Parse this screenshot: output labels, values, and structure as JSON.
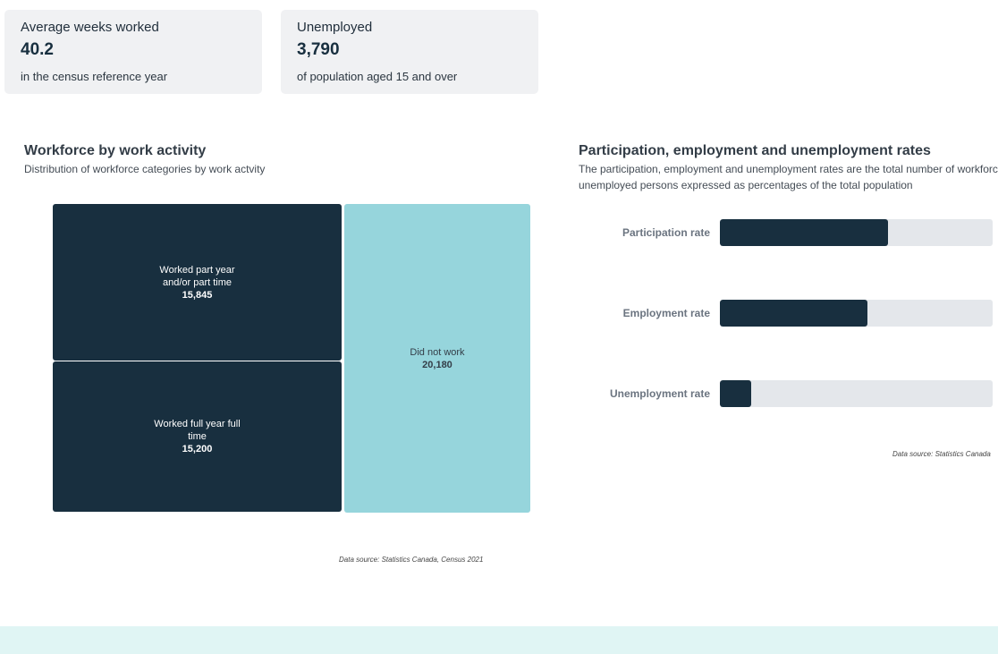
{
  "cards": [
    {
      "label": "Average weeks worked",
      "value": "40.2",
      "sub": "in the census reference year"
    },
    {
      "label": "Unemployed",
      "value": "3,790",
      "sub": "of population aged 15 and over"
    }
  ],
  "workforce": {
    "title": "Workforce by work activity",
    "subtitle": "Distribution of workforce categories by work actvity",
    "source": "Data source: Statistics Canada, Census 2021"
  },
  "rates": {
    "title": "Participation, employment and unemployment rates",
    "subtitle": "The participation, employment and unemployment rates are the total number of workforce, unemployed persons expressed as percentages of the total population",
    "source": "Data source: Statistics Canada"
  },
  "chart_data": [
    {
      "type": "treemap",
      "colors": {
        "dark": "#182f3f",
        "light": "#96d5dc"
      },
      "items": [
        {
          "label": "Worked part year and/or part time",
          "display": "15,845",
          "value": 15845,
          "group": "worked",
          "color": "#182f3f"
        },
        {
          "label": "Worked full year full time",
          "display": "15,200",
          "value": 15200,
          "group": "worked",
          "color": "#182f3f"
        },
        {
          "label": "Did not work",
          "display": "20,180",
          "value": 20180,
          "group": "not",
          "color": "#96d5dc"
        }
      ]
    },
    {
      "type": "bar",
      "orientation": "horizontal",
      "categories": [
        "Participation rate",
        "Employment rate",
        "Unemployment rate"
      ],
      "values": [
        61.6,
        54.1,
        11.5
      ],
      "xlim": [
        0,
        100
      ],
      "unit": "%",
      "color": "#182f3f",
      "track_color": "#e4e7eb"
    }
  ]
}
